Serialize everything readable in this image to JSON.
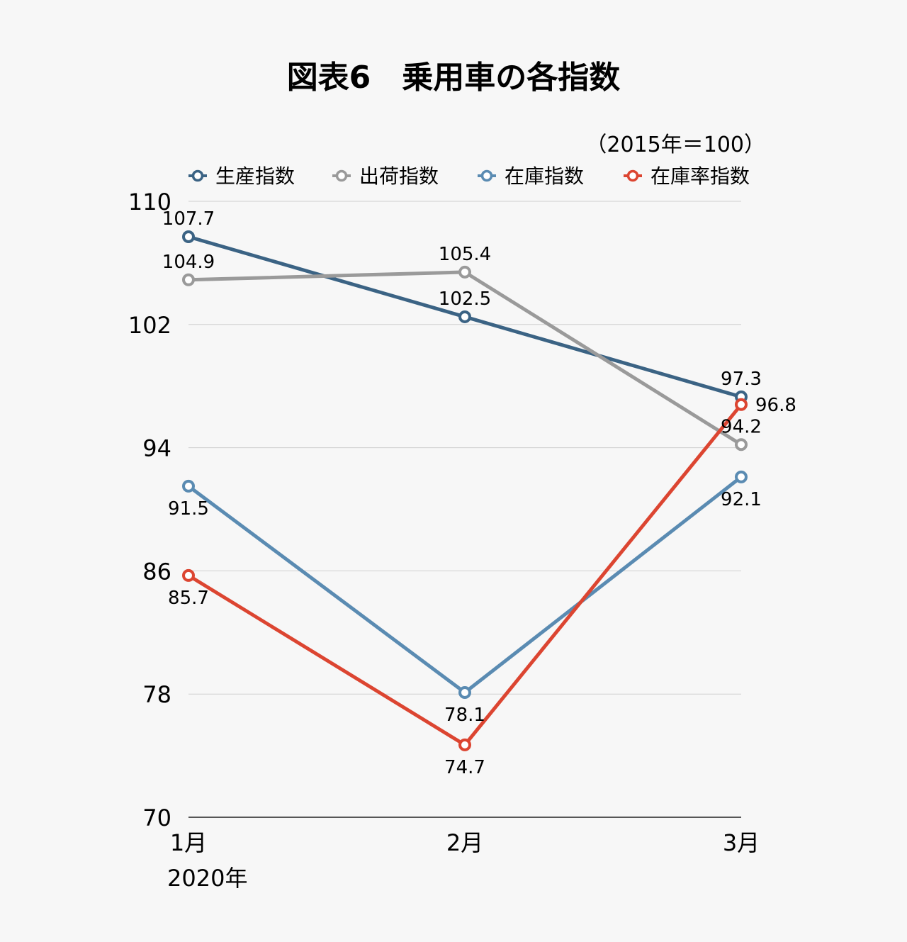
{
  "chart_data": {
    "type": "line",
    "title": "図表6　乗用車の各指数",
    "unit_note": "（2015年＝100）",
    "categories": [
      "1月",
      "2月",
      "3月"
    ],
    "category_sublabels": [
      "2020年",
      "",
      ""
    ],
    "ylim": [
      70,
      110
    ],
    "yticks": [
      70,
      78,
      86,
      94,
      102,
      110
    ],
    "grid": true,
    "legend_position": "top",
    "series": [
      {
        "name": "生産指数",
        "color": "#3b6384",
        "values": [
          107.7,
          102.5,
          97.3
        ],
        "label_positions": [
          "above",
          "above",
          "above"
        ]
      },
      {
        "name": "出荷指数",
        "color": "#9a9a9a",
        "values": [
          104.9,
          105.4,
          94.2
        ],
        "label_positions": [
          "above",
          "above",
          "above"
        ]
      },
      {
        "name": "在庫指数",
        "color": "#5a8bb2",
        "values": [
          91.5,
          78.1,
          92.1
        ],
        "label_positions": [
          "below",
          "below",
          "below"
        ]
      },
      {
        "name": "在庫率指数",
        "color": "#dc4531",
        "values": [
          85.7,
          74.7,
          96.8
        ],
        "label_positions": [
          "below",
          "below",
          "right"
        ]
      }
    ]
  }
}
